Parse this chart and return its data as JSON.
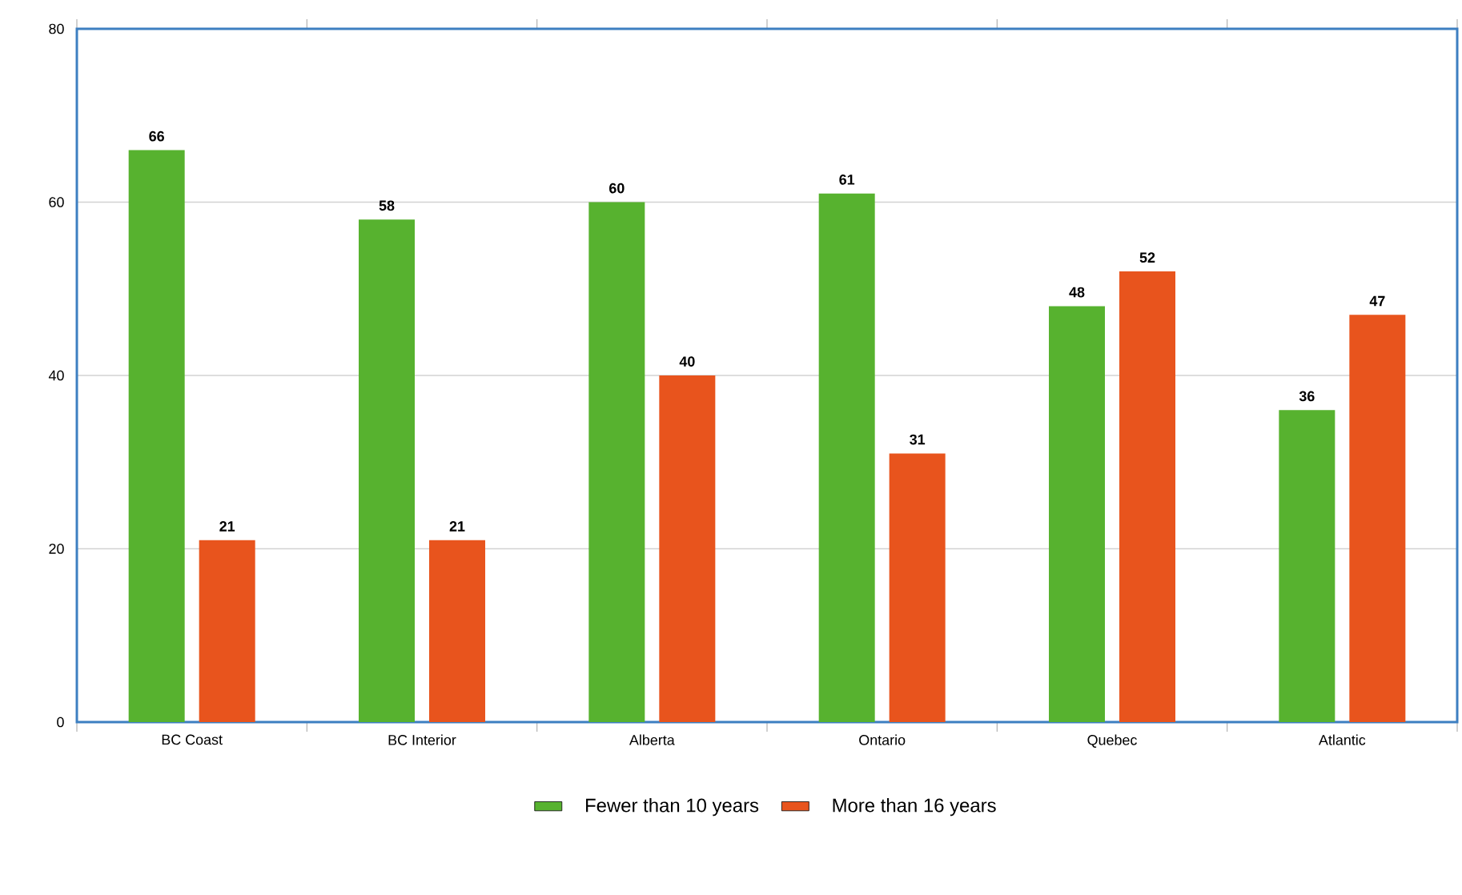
{
  "chart_data": {
    "type": "bar",
    "categories": [
      "BC Coast",
      "BC Interior",
      "Alberta",
      "Ontario",
      "Quebec",
      "Atlantic"
    ],
    "series": [
      {
        "name": "Fewer than 10 years",
        "color": "#57b22f",
        "values": [
          66,
          58,
          60,
          61,
          48,
          36
        ]
      },
      {
        "name": "More than 16 years",
        "color": "#e8541d",
        "values": [
          21,
          21,
          40,
          31,
          52,
          47
        ]
      }
    ],
    "ylim": [
      0,
      80
    ],
    "yticks": [
      0,
      20,
      40,
      60,
      80
    ],
    "grid": "y",
    "legend": "bottom",
    "data_labels": true
  }
}
